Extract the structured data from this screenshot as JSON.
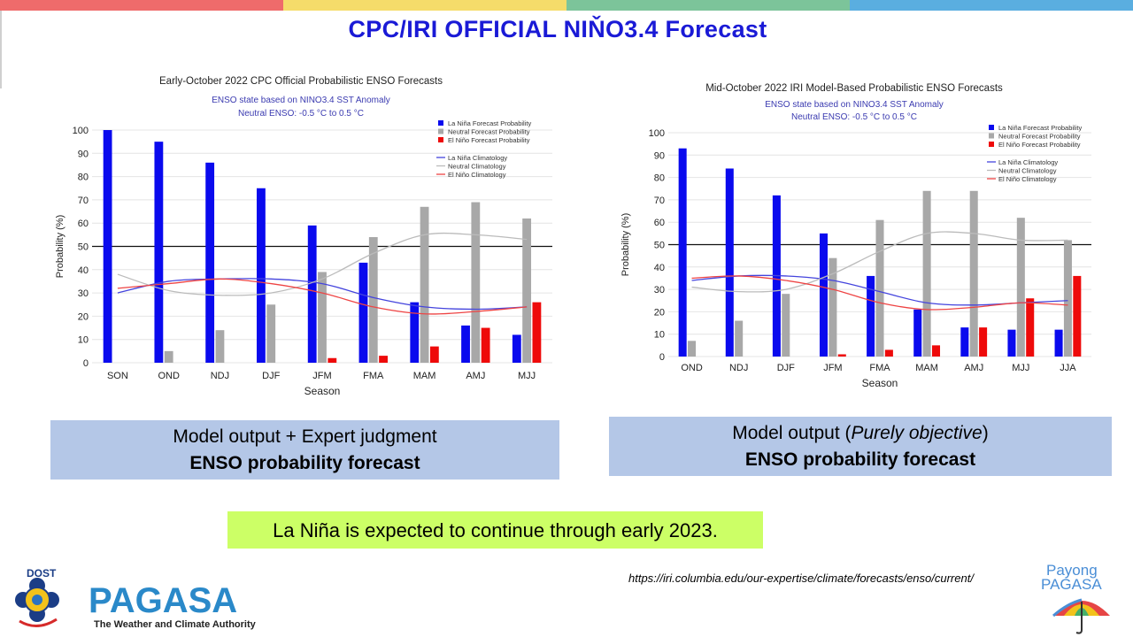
{
  "slide": {
    "title": "CPC/IRI OFFICIAL NIŇO3.4 Forecast",
    "top_colors": [
      "#ef6b6b",
      "#f5dc6a",
      "#7cc49a",
      "#5aaee0"
    ]
  },
  "captions": {
    "left_line1": "Model output + Expert judgment",
    "left_line2": "ENSO probability forecast",
    "right_line1_pre": "Model output (",
    "right_line1_italic": "Purely objective",
    "right_line1_post": ")",
    "right_line2": "ENSO probability forecast"
  },
  "note": "La Niña is expected to continue through early 2023.",
  "url": "https://iri.columbia.edu/our-expertise/climate/forecasts/enso/current/",
  "logos": {
    "left_top": "DOST",
    "left_name": "PAGASA",
    "left_tagline": "The Weather and Climate Authority",
    "right_line1": "Payong",
    "right_line2": "PAGASA"
  },
  "colors": {
    "lanina": "#0a0aee",
    "neutral": "#a8a8a8",
    "elnino": "#ee0a0a",
    "lanina_clim": "#4444dd",
    "neutral_clim": "#bbbbbb",
    "elnino_clim": "#ee4444",
    "title_blue": "#1a1ad6",
    "caption_bg": "#b4c7e7",
    "note_bg": "#ccff66"
  },
  "chart_data": [
    {
      "type": "bar",
      "title": "Early-October 2022 CPC Official Probabilistic ENSO Forecasts",
      "subtitle1": "ENSO state based on NINO3.4 SST Anomaly",
      "subtitle2": "Neutral ENSO: -0.5 °C to 0.5 °C",
      "xlabel": "Season",
      "ylabel": "Probability (%)",
      "ylim": [
        0,
        100
      ],
      "yticks": [
        "0",
        "10",
        "20",
        "30",
        "40",
        "50",
        "60",
        "70",
        "80",
        "90",
        "100"
      ],
      "reference_line": 50,
      "categories": [
        "SON",
        "OND",
        "NDJ",
        "DJF",
        "JFM",
        "FMA",
        "MAM",
        "AMJ",
        "MJJ"
      ],
      "series": [
        {
          "name": "La Niña Forecast Probability",
          "values": [
            100,
            95,
            86,
            75,
            59,
            43,
            26,
            16,
            12
          ]
        },
        {
          "name": "Neutral Forecast Probability",
          "values": [
            0,
            5,
            14,
            25,
            39,
            54,
            67,
            69,
            62
          ]
        },
        {
          "name": "El Niño Forecast Probability",
          "values": [
            0,
            0,
            0,
            0,
            2,
            3,
            7,
            15,
            26
          ]
        }
      ],
      "climatology": [
        {
          "name": "La Niña Climatology",
          "values": [
            30,
            35,
            36,
            36,
            34,
            28,
            24,
            23,
            24
          ]
        },
        {
          "name": "Neutral Climatology",
          "values": [
            38,
            31,
            29,
            30,
            36,
            47,
            55,
            55,
            53
          ]
        },
        {
          "name": "El Niño Climatology",
          "values": [
            32,
            34,
            36,
            34,
            30,
            24,
            21,
            22,
            24
          ]
        }
      ]
    },
    {
      "type": "bar",
      "title": "Mid-October 2022 IRI Model-Based Probabilistic ENSO Forecasts",
      "subtitle1": "ENSO state based on NINO3.4 SST Anomaly",
      "subtitle2": "Neutral ENSO: -0.5 °C to 0.5 °C",
      "xlabel": "Season",
      "ylabel": "Probability (%)",
      "ylim": [
        0,
        100
      ],
      "yticks": [
        "0",
        "10",
        "20",
        "30",
        "40",
        "50",
        "60",
        "70",
        "80",
        "90",
        "100"
      ],
      "reference_line": 50,
      "categories": [
        "OND",
        "NDJ",
        "DJF",
        "JFM",
        "FMA",
        "MAM",
        "AMJ",
        "MJJ",
        "JJA"
      ],
      "series": [
        {
          "name": "La Niña Forecast Probability",
          "values": [
            93,
            84,
            72,
            55,
            36,
            21,
            13,
            12,
            12
          ]
        },
        {
          "name": "Neutral Forecast Probability",
          "values": [
            7,
            16,
            28,
            44,
            61,
            74,
            74,
            62,
            52
          ]
        },
        {
          "name": "El Niño Forecast Probability",
          "values": [
            0,
            0,
            0,
            1,
            3,
            5,
            13,
            26,
            36
          ]
        }
      ],
      "climatology": [
        {
          "name": "La Niña Climatology",
          "values": [
            34,
            36,
            36,
            34,
            29,
            24,
            23,
            24,
            25
          ]
        },
        {
          "name": "Neutral Climatology",
          "values": [
            31,
            29,
            30,
            37,
            47,
            55,
            55,
            52,
            52
          ]
        },
        {
          "name": "El Niño Climatology",
          "values": [
            35,
            36,
            34,
            30,
            24,
            21,
            22,
            24,
            23
          ]
        }
      ]
    }
  ]
}
